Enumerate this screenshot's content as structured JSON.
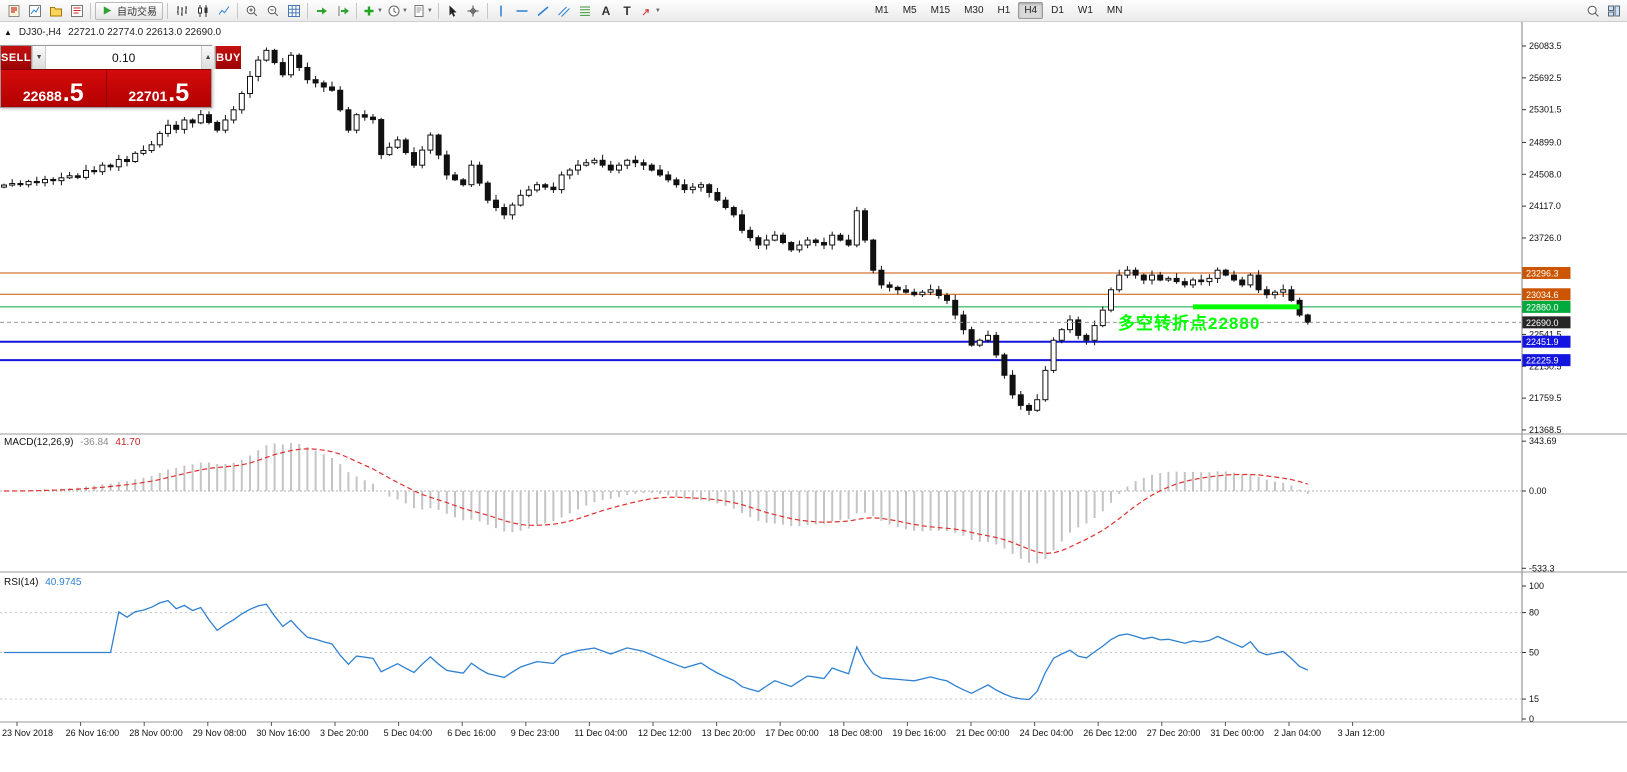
{
  "window": {
    "symbol_period": "DJ30-,H4",
    "ohlc": "22721.0 22774.0 22613.0 22690.0"
  },
  "toolbar": {
    "auto_trading_label": "自动交易",
    "timeframes": [
      "M1",
      "M5",
      "M15",
      "M30",
      "H1",
      "H4",
      "D1",
      "W1",
      "MN"
    ],
    "active_timeframe": "H4",
    "items": [
      "new-order",
      "new-chart",
      "profiles",
      "market-watch",
      "sep",
      "auto-trading",
      "sep",
      "bar-chart",
      "candlestick-chart",
      "line-chart",
      "sep",
      "zoom-in",
      "zoom-out",
      "grid",
      "sep",
      "auto-scroll",
      "chart-shift",
      "sep",
      "indicators",
      "periods",
      "templates",
      "sep",
      "cursor",
      "crosshair",
      "sep",
      "vertical-line",
      "horizontal-line",
      "trendline",
      "equidistant-channel",
      "fibonacci",
      "text",
      "text-label",
      "arrow-tools",
      "gap",
      "timeframes",
      "spacer",
      "search",
      "window-layout"
    ]
  },
  "trade_panel": {
    "sell_label": "SELL",
    "buy_label": "BUY",
    "lot_size": "0.10",
    "sell_price_main": "22688",
    "sell_price_pips": ".5",
    "buy_price_main": "22701",
    "buy_price_pips": ".5"
  },
  "annotation": {
    "text": "多空转折点22880",
    "color": "#00ff00"
  },
  "chart_data": {
    "type": "candlestick",
    "symbol": "DJ30-",
    "timeframe": "H4",
    "current_ohlc": {
      "open": 22721.0,
      "high": 22774.0,
      "low": 22613.0,
      "close": 22690.0
    },
    "bid": 22688.5,
    "ask": 22701.5,
    "price_axis": {
      "ticks": [
        {
          "value": 26083.5,
          "label": "26083.5"
        },
        {
          "value": 25692.5,
          "label": "25692.5"
        },
        {
          "value": 25301.5,
          "label": "25301.5"
        },
        {
          "value": 24899.0,
          "label": "24899.0"
        },
        {
          "value": 24508.0,
          "label": "24508.0"
        },
        {
          "value": 24117.0,
          "label": "24117.0"
        },
        {
          "value": 23726.0,
          "label": "23726.0"
        },
        {
          "value": 22541.5,
          "label": "22541.5"
        },
        {
          "value": 22150.5,
          "label": "22150.5"
        },
        {
          "value": 21759.5,
          "label": "21759.5"
        },
        {
          "value": 21368.5,
          "label": "21368.5"
        }
      ]
    },
    "levels": [
      {
        "value": 23296.3,
        "label": "23296.3",
        "color": "#cc5500",
        "width": 1
      },
      {
        "value": 23034.6,
        "label": "23034.6",
        "color": "#cc5500",
        "width": 1
      },
      {
        "value": 22880.0,
        "label": "22880.0",
        "color": "#00aa3c",
        "width": 1
      },
      {
        "value": 22451.9,
        "label": "22451.9",
        "color": "#1515e0",
        "width": 2
      },
      {
        "value": 22225.9,
        "label": "22225.9",
        "color": "#1515e0",
        "width": 2
      }
    ],
    "current_price": {
      "value": 22690.0,
      "label": "22690.0",
      "bg": "#262626"
    },
    "highlight": {
      "value": 22880.0,
      "i1": 145,
      "i2": 158,
      "color": "#00ff00"
    },
    "closes": [
      24376,
      24395,
      24380,
      24420,
      24405,
      24445,
      24430,
      24465,
      24490,
      24470,
      24555,
      24540,
      24620,
      24600,
      24690,
      24665,
      24765,
      24800,
      24870,
      25010,
      25110,
      25060,
      25175,
      25140,
      25240,
      25145,
      25050,
      25175,
      25300,
      25500,
      25710,
      25910,
      26030,
      25880,
      25730,
      25970,
      25820,
      25670,
      25630,
      25580,
      25540,
      25300,
      25050,
      25240,
      25210,
      25180,
      24750,
      24840,
      24930,
      24775,
      24620,
      24805,
      24990,
      24745,
      24500,
      24440,
      24380,
      24620,
      24400,
      24190,
      24100,
      24010,
      24130,
      24250,
      24315,
      24380,
      24350,
      24320,
      24500,
      24560,
      24620,
      24650,
      24680,
      24620,
      24560,
      24620,
      24680,
      24650,
      24620,
      24560,
      24500,
      24440,
      24380,
      24320,
      24350,
      24380,
      24285,
      24190,
      24100,
      24010,
      23820,
      23730,
      23640,
      23700,
      23760,
      23670,
      23580,
      23640,
      23700,
      23670,
      23640,
      23760,
      23700,
      23640,
      24060,
      23700,
      23330,
      23150,
      23120,
      23090,
      23060,
      23030,
      23060,
      23090,
      23020,
      22960,
      22780,
      22600,
      22410,
      22470,
      22530,
      22290,
      22040,
      21800,
      21670,
      21610,
      21740,
      22100,
      22470,
      22600,
      22720,
      22530,
      22470,
      22650,
      22840,
      23090,
      23270,
      23330,
      23270,
      23210,
      23270,
      23210,
      23230,
      23190,
      23150,
      23210,
      23190,
      23230,
      23330,
      23270,
      23210,
      23150,
      23270,
      23090,
      23030,
      23060,
      23090,
      22960,
      22780,
      22690
    ],
    "macd": {
      "name": "MACD(12,26,9)",
      "value_main": "-36.84",
      "value_signal": "41.70",
      "fast": 12,
      "slow": 26,
      "signal": 9,
      "ticks": [
        {
          "value": 343.69,
          "label": "343.69"
        },
        {
          "value": 0,
          "label": "0.00"
        },
        {
          "value": -533.3,
          "label": "-533.3"
        }
      ]
    },
    "rsi": {
      "name": "RSI(14)",
      "period": 14,
      "value": "40.9745",
      "ticks": [
        {
          "value": 100,
          "label": "100"
        },
        {
          "value": 80,
          "label": "80"
        },
        {
          "value": 50,
          "label": "50"
        },
        {
          "value": 15,
          "label": "15"
        },
        {
          "value": 0,
          "label": "0"
        }
      ],
      "guides": [
        80,
        50,
        15
      ]
    },
    "x_labels": [
      "23 Nov 2018",
      "26 Nov 16:00",
      "28 Nov 00:00",
      "29 Nov 08:00",
      "30 Nov 16:00",
      "3 Dec 20:00",
      "5 Dec 04:00",
      "6 Dec 16:00",
      "9 Dec 23:00",
      "11 Dec 04:00",
      "12 Dec 12:00",
      "13 Dec 20:00",
      "17 Dec 00:00",
      "18 Dec 08:00",
      "19 Dec 16:00",
      "21 Dec 00:00",
      "24 Dec 04:00",
      "26 Dec 12:00",
      "27 Dec 20:00",
      "31 Dec 00:00",
      "2 Jan 04:00",
      "3 Jan 12:00"
    ]
  }
}
